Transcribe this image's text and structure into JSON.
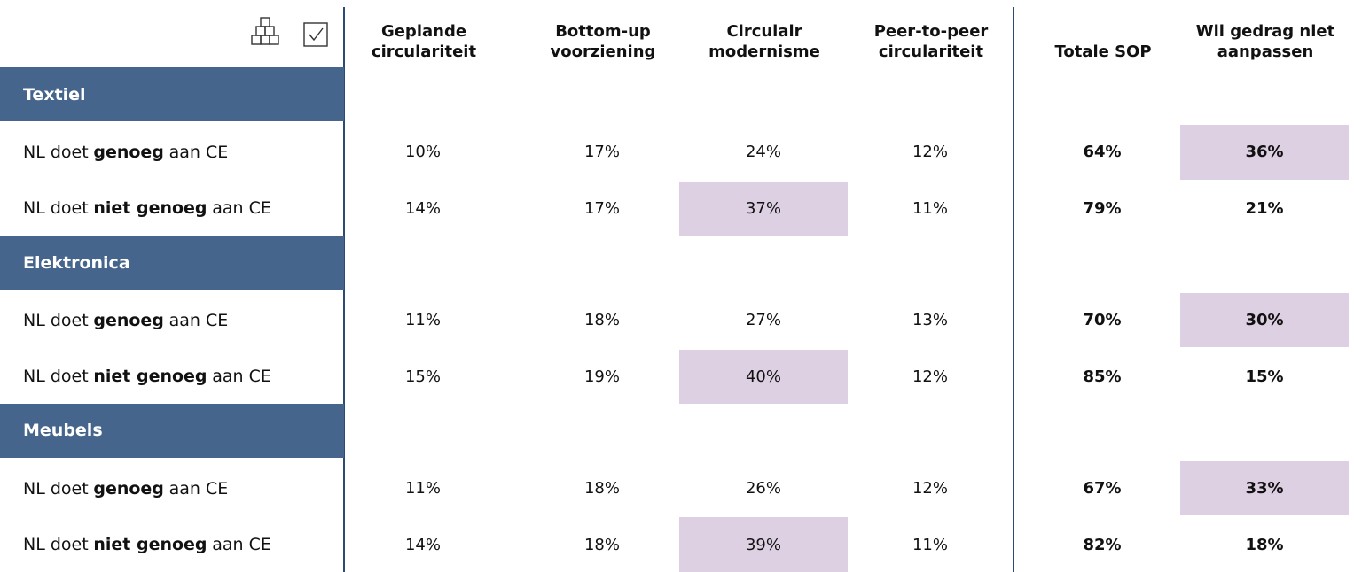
{
  "table": {
    "columns": [
      [
        "Geplande",
        "circulariteit"
      ],
      [
        "Bottom-up",
        "voorziening"
      ],
      [
        "Circulair",
        "modernisme"
      ],
      [
        "Peer-to-peer",
        "circulariteit"
      ],
      [
        "Totale SOP"
      ],
      [
        "Wil gedrag niet",
        "aanpassen"
      ]
    ],
    "sections": [
      {
        "title": "Textiel",
        "rows": [
          {
            "label": [
              "NL doet",
              "genoeg",
              "aan CE"
            ],
            "cells": [
              "10%",
              "17%",
              "24%",
              "12%",
              "64%",
              "36%"
            ],
            "highlight": 5
          },
          {
            "label": [
              "NL doet",
              "niet genoeg",
              "aan CE"
            ],
            "cells": [
              "14%",
              "17%",
              "37%",
              "11%",
              "79%",
              "21%"
            ],
            "highlight": 2
          }
        ]
      },
      {
        "title": "Elektronica",
        "rows": [
          {
            "label": [
              "NL doet",
              "genoeg",
              "aan CE"
            ],
            "cells": [
              "11%",
              "18%",
              "27%",
              "13%",
              "70%",
              "30%"
            ],
            "highlight": 5
          },
          {
            "label": [
              "NL doet",
              "niet genoeg",
              "aan CE"
            ],
            "cells": [
              "15%",
              "19%",
              "40%",
              "12%",
              "85%",
              "15%"
            ],
            "highlight": 2
          }
        ]
      },
      {
        "title": "Meubels",
        "rows": [
          {
            "label": [
              "NL doet",
              "genoeg",
              "aan CE"
            ],
            "cells": [
              "11%",
              "18%",
              "26%",
              "12%",
              "67%",
              "33%"
            ],
            "highlight": 5
          },
          {
            "label": [
              "NL doet",
              "niet genoeg",
              "aan CE"
            ],
            "cells": [
              "14%",
              "18%",
              "39%",
              "11%",
              "82%",
              "18%"
            ],
            "highlight": 2
          }
        ]
      }
    ]
  }
}
